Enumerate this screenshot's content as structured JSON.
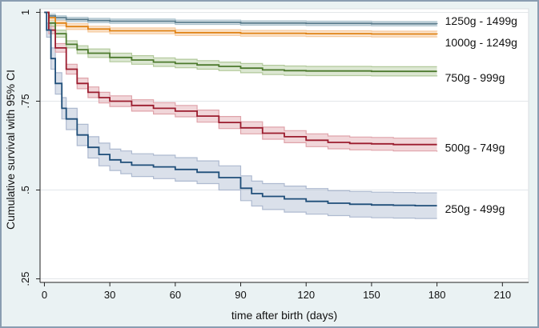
{
  "chart_data": {
    "type": "line",
    "title": "",
    "xlabel": "time after birth (days)",
    "ylabel": "Cumulative survival with 95% CI",
    "xlim": [
      -2,
      222
    ],
    "ylim": [
      0.24,
      1.01
    ],
    "x_ticks": [
      0,
      30,
      60,
      90,
      120,
      150,
      180,
      210
    ],
    "y_ticks": [
      1,
      0.75,
      0.5,
      0.25
    ],
    "y_tick_labels": [
      "1",
      ".75",
      ".5",
      ".25"
    ],
    "grid": true,
    "series": [
      {
        "name": "1250g - 1499g",
        "color": "#5b7d8d",
        "band_color": "#a9c0cb",
        "x": [
          0,
          2,
          5,
          10,
          20,
          30,
          60,
          90,
          120,
          150,
          180
        ],
        "y": [
          1.0,
          0.99,
          0.985,
          0.98,
          0.977,
          0.975,
          0.972,
          0.97,
          0.969,
          0.968,
          0.967
        ],
        "lower": [
          1.0,
          0.985,
          0.979,
          0.974,
          0.971,
          0.969,
          0.966,
          0.964,
          0.963,
          0.962,
          0.961
        ],
        "upper": [
          1.0,
          0.995,
          0.99,
          0.986,
          0.983,
          0.981,
          0.978,
          0.976,
          0.975,
          0.974,
          0.973
        ]
      },
      {
        "name": "1000g - 1249g",
        "color": "#e08214",
        "band_color": "#f6c89a",
        "x": [
          0,
          2,
          5,
          10,
          20,
          30,
          60,
          90,
          120,
          150,
          180
        ],
        "y": [
          1.0,
          0.985,
          0.97,
          0.96,
          0.953,
          0.948,
          0.943,
          0.941,
          0.94,
          0.939,
          0.938
        ],
        "lower": [
          1.0,
          0.978,
          0.962,
          0.952,
          0.945,
          0.94,
          0.935,
          0.933,
          0.932,
          0.931,
          0.93
        ],
        "upper": [
          1.0,
          0.991,
          0.978,
          0.968,
          0.961,
          0.956,
          0.951,
          0.949,
          0.948,
          0.947,
          0.946
        ]
      },
      {
        "name": "750g - 999g",
        "color": "#4d7a2e",
        "band_color": "#b2c99b",
        "x": [
          0,
          2,
          5,
          10,
          15,
          20,
          30,
          40,
          50,
          60,
          70,
          80,
          90,
          100,
          110,
          120,
          150,
          180
        ],
        "y": [
          1.0,
          0.97,
          0.94,
          0.91,
          0.895,
          0.885,
          0.873,
          0.866,
          0.86,
          0.856,
          0.852,
          0.848,
          0.843,
          0.838,
          0.836,
          0.835,
          0.834,
          0.834
        ],
        "lower": [
          1.0,
          0.962,
          0.93,
          0.9,
          0.884,
          0.873,
          0.861,
          0.854,
          0.848,
          0.844,
          0.84,
          0.836,
          0.83,
          0.825,
          0.823,
          0.822,
          0.821,
          0.82
        ],
        "upper": [
          1.0,
          0.978,
          0.95,
          0.92,
          0.906,
          0.897,
          0.885,
          0.878,
          0.872,
          0.868,
          0.864,
          0.86,
          0.856,
          0.851,
          0.849,
          0.848,
          0.847,
          0.847
        ]
      },
      {
        "name": "500g - 749g",
        "color": "#9b1c2e",
        "band_color": "#dfa3aa",
        "x": [
          0,
          2,
          5,
          10,
          15,
          20,
          25,
          30,
          40,
          50,
          60,
          70,
          80,
          90,
          100,
          110,
          120,
          130,
          140,
          150,
          160,
          170,
          180
        ],
        "y": [
          1.0,
          0.95,
          0.9,
          0.84,
          0.8,
          0.775,
          0.76,
          0.75,
          0.738,
          0.73,
          0.722,
          0.708,
          0.69,
          0.675,
          0.66,
          0.65,
          0.64,
          0.634,
          0.631,
          0.63,
          0.628,
          0.628,
          0.628
        ],
        "lower": [
          1.0,
          0.94,
          0.888,
          0.826,
          0.785,
          0.76,
          0.745,
          0.735,
          0.722,
          0.714,
          0.706,
          0.691,
          0.673,
          0.658,
          0.643,
          0.633,
          0.622,
          0.616,
          0.613,
          0.612,
          0.61,
          0.61,
          0.608
        ],
        "upper": [
          1.0,
          0.96,
          0.912,
          0.854,
          0.815,
          0.79,
          0.775,
          0.765,
          0.754,
          0.746,
          0.738,
          0.725,
          0.707,
          0.692,
          0.677,
          0.667,
          0.658,
          0.652,
          0.649,
          0.648,
          0.646,
          0.646,
          0.646
        ]
      },
      {
        "name": "250g - 499g",
        "color": "#1f4e79",
        "band_color": "#aebad0",
        "x": [
          0,
          1,
          3,
          5,
          8,
          10,
          15,
          20,
          25,
          30,
          35,
          40,
          50,
          60,
          70,
          80,
          90,
          95,
          100,
          110,
          120,
          130,
          140,
          150,
          160,
          170,
          180
        ],
        "y": [
          1.0,
          0.95,
          0.87,
          0.8,
          0.73,
          0.7,
          0.655,
          0.62,
          0.6,
          0.585,
          0.578,
          0.57,
          0.565,
          0.558,
          0.55,
          0.535,
          0.505,
          0.49,
          0.482,
          0.475,
          0.468,
          0.463,
          0.46,
          0.458,
          0.457,
          0.456,
          0.456
        ],
        "lower": [
          1.0,
          0.93,
          0.84,
          0.77,
          0.7,
          0.67,
          0.625,
          0.59,
          0.568,
          0.555,
          0.546,
          0.538,
          0.532,
          0.525,
          0.518,
          0.5,
          0.47,
          0.455,
          0.445,
          0.438,
          0.432,
          0.428,
          0.424,
          0.422,
          0.421,
          0.42,
          0.42
        ],
        "upper": [
          1.0,
          0.97,
          0.9,
          0.83,
          0.76,
          0.73,
          0.685,
          0.65,
          0.632,
          0.615,
          0.61,
          0.602,
          0.598,
          0.591,
          0.582,
          0.568,
          0.54,
          0.525,
          0.518,
          0.511,
          0.504,
          0.498,
          0.496,
          0.494,
          0.493,
          0.492,
          0.492
        ]
      }
    ]
  }
}
